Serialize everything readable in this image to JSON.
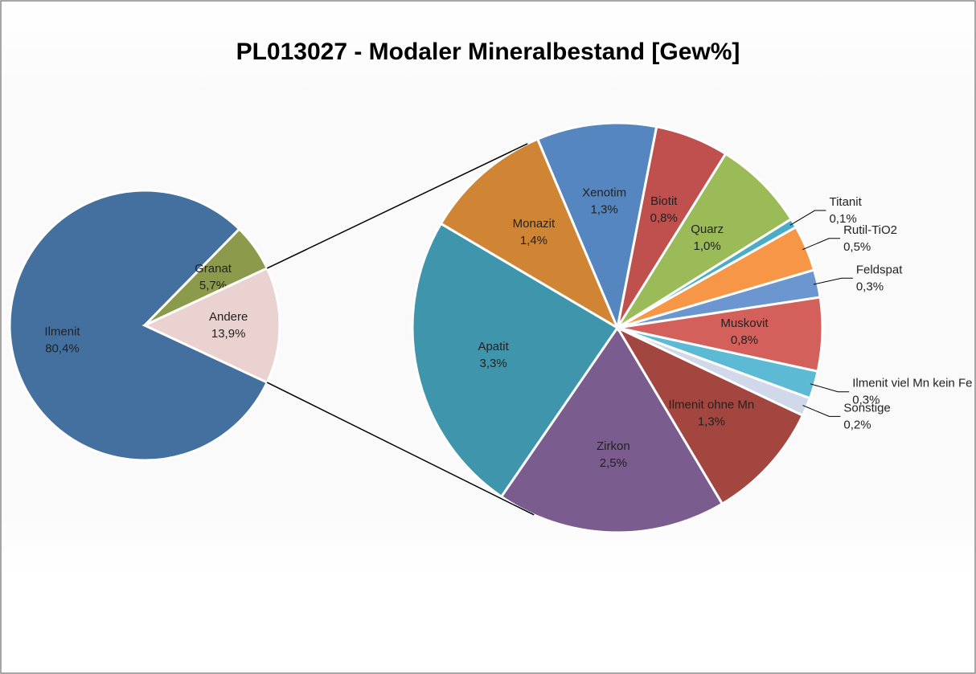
{
  "chart_data": {
    "type": "pie",
    "title": "PL013027 - Modaler Mineralbestand [Gew%]",
    "categories": [
      "Ilmenit",
      "Granat",
      "Andere"
    ],
    "values": [
      80.4,
      5.7,
      13.9
    ],
    "value_labels": [
      "80,4%",
      "5,7%",
      "13,9%"
    ],
    "colors": [
      "#4470a0",
      "#8c9b4b",
      "#ead2d0"
    ],
    "breakdown": {
      "categories": [
        "Biotit",
        "Quarz",
        "Titanit",
        "Rutil-TiO2",
        "Feldspat",
        "Muskovit",
        "Ilmenit viel Mn kein Fe",
        "Sonstige",
        "Ilmenit ohne Mn",
        "Zirkon",
        "Apatit",
        "Monazit",
        "Xenotim"
      ],
      "values": [
        0.8,
        1.0,
        0.1,
        0.5,
        0.3,
        0.8,
        0.3,
        0.2,
        1.3,
        2.5,
        3.3,
        1.4,
        1.3
      ],
      "value_labels": [
        "0,8%",
        "1,0%",
        "0,1%",
        "0,5%",
        "0,3%",
        "0,8%",
        "0,3%",
        "0,2%",
        "1,3%",
        "2,5%",
        "3,3%",
        "1,4%",
        "1,3%"
      ],
      "colors": [
        "#c0504d",
        "#9bbb59",
        "#4bacc6",
        "#f79646",
        "#6b96cf",
        "#d4605c",
        "#5cbad4",
        "#d0d8ea",
        "#a3463f",
        "#7a5c8e",
        "#3f95ab",
        "#d08535",
        "#5686bf"
      ]
    }
  }
}
